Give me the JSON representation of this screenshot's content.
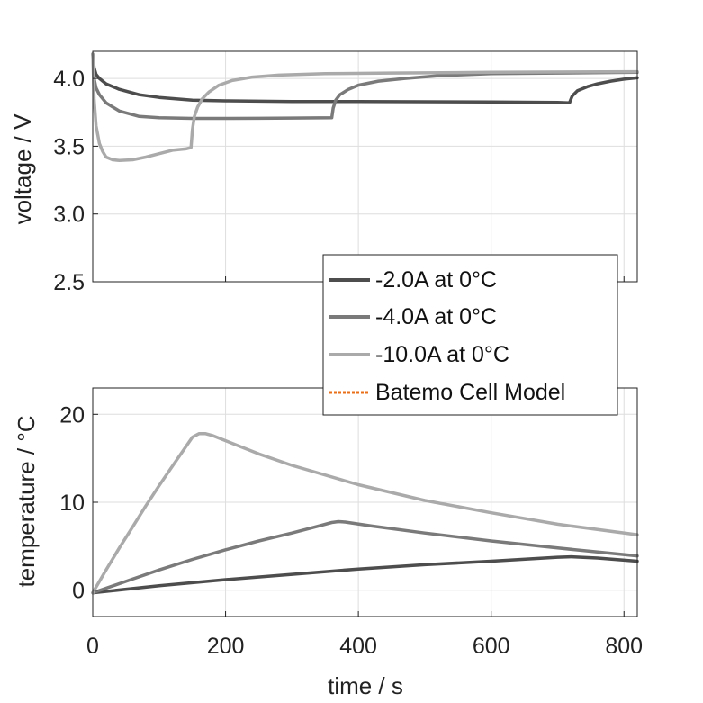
{
  "chart_data": [
    {
      "type": "line",
      "id": "voltage",
      "ylabel": "voltage / V",
      "xlabel": "",
      "xlim": [
        0,
        820
      ],
      "ylim": [
        2.5,
        4.2
      ],
      "xticks": [
        0,
        200,
        400,
        600,
        800
      ],
      "yticks": [
        2.5,
        3.0,
        3.5,
        4.0
      ],
      "ytick_labels": [
        "2.5",
        "3.0",
        "3.5",
        "4.0"
      ],
      "show_xtick_labels": false,
      "grid": true,
      "series": [
        {
          "name": "-2.0A at 0°C",
          "color": "#4d4d4d",
          "x": [
            0,
            2,
            5,
            10,
            20,
            40,
            70,
            100,
            150,
            200,
            300,
            400,
            500,
            600,
            700,
            718,
            722,
            730,
            745,
            760,
            780,
            800,
            820
          ],
          "y": [
            4.18,
            4.08,
            4.03,
            4.0,
            3.96,
            3.92,
            3.88,
            3.86,
            3.84,
            3.835,
            3.83,
            3.83,
            3.828,
            3.826,
            3.823,
            3.82,
            3.87,
            3.91,
            3.94,
            3.96,
            3.98,
            3.995,
            4.005
          ]
        },
        {
          "name": "-4.0A at 0°C",
          "color": "#7a7a7a",
          "x": [
            0,
            2,
            5,
            10,
            20,
            40,
            70,
            100,
            150,
            200,
            250,
            300,
            360,
            362,
            366,
            372,
            385,
            400,
            430,
            470,
            520,
            600,
            700,
            820
          ],
          "y": [
            4.18,
            4.0,
            3.93,
            3.88,
            3.82,
            3.76,
            3.72,
            3.71,
            3.705,
            3.705,
            3.706,
            3.708,
            3.71,
            3.78,
            3.84,
            3.88,
            3.92,
            3.95,
            3.98,
            4.0,
            4.02,
            4.035,
            4.04,
            4.045
          ]
        },
        {
          "name": "-10.0A at 0°C",
          "color": "#aaaaaa",
          "x": [
            0,
            2,
            5,
            10,
            15,
            20,
            30,
            40,
            60,
            80,
            100,
            120,
            140,
            148,
            150,
            153,
            158,
            165,
            175,
            190,
            210,
            240,
            280,
            350,
            450,
            600,
            820
          ],
          "y": [
            4.18,
            3.85,
            3.65,
            3.52,
            3.46,
            3.42,
            3.4,
            3.395,
            3.4,
            3.42,
            3.445,
            3.47,
            3.48,
            3.49,
            3.62,
            3.72,
            3.79,
            3.85,
            3.9,
            3.95,
            3.985,
            4.01,
            4.025,
            4.035,
            4.04,
            4.045,
            4.05
          ]
        }
      ],
      "legend": {
        "placement": "bottom-right",
        "entries": [
          {
            "label": "-2.0A at 0°C",
            "color": "#4d4d4d",
            "style": "solid"
          },
          {
            "label": "-4.0A at 0°C",
            "color": "#7a7a7a",
            "style": "solid"
          },
          {
            "label": "-10.0A at 0°C",
            "color": "#aaaaaa",
            "style": "solid"
          },
          {
            "label": "Batemo Cell Model",
            "color": "#e8701a",
            "style": "dotted"
          }
        ]
      }
    },
    {
      "type": "line",
      "id": "temperature",
      "ylabel": "temperature / °C",
      "xlabel": "time / s",
      "xlim": [
        0,
        820
      ],
      "ylim": [
        -3,
        23
      ],
      "xticks": [
        0,
        200,
        400,
        600,
        800
      ],
      "xtick_labels": [
        "0",
        "200",
        "400",
        "600",
        "800"
      ],
      "yticks": [
        0,
        10,
        20
      ],
      "ytick_labels": [
        "0",
        "10",
        "20"
      ],
      "show_xtick_labels": true,
      "grid": true,
      "series": [
        {
          "name": "-2.0A at 0°C",
          "color": "#4d4d4d",
          "x": [
            0,
            100,
            200,
            300,
            400,
            500,
            600,
            700,
            720,
            760,
            820
          ],
          "y": [
            -0.3,
            0.5,
            1.2,
            1.8,
            2.4,
            2.9,
            3.3,
            3.75,
            3.8,
            3.65,
            3.3
          ]
        },
        {
          "name": "-4.0A at 0°C",
          "color": "#7a7a7a",
          "x": [
            0,
            50,
            100,
            150,
            200,
            250,
            300,
            340,
            360,
            370,
            380,
            420,
            500,
            600,
            700,
            820
          ],
          "y": [
            -0.3,
            1.0,
            2.3,
            3.5,
            4.6,
            5.6,
            6.5,
            7.3,
            7.7,
            7.8,
            7.75,
            7.3,
            6.5,
            5.6,
            4.8,
            3.9
          ]
        },
        {
          "name": "-10.0A at 0°C",
          "color": "#aaaaaa",
          "x": [
            0,
            20,
            40,
            60,
            80,
            100,
            120,
            140,
            150,
            160,
            170,
            180,
            200,
            250,
            300,
            400,
            500,
            600,
            700,
            820
          ],
          "y": [
            -0.3,
            2.3,
            4.8,
            7.2,
            9.6,
            11.9,
            14.1,
            16.3,
            17.4,
            17.8,
            17.8,
            17.6,
            17.0,
            15.5,
            14.2,
            12.0,
            10.2,
            8.8,
            7.5,
            6.3
          ]
        }
      ]
    }
  ]
}
